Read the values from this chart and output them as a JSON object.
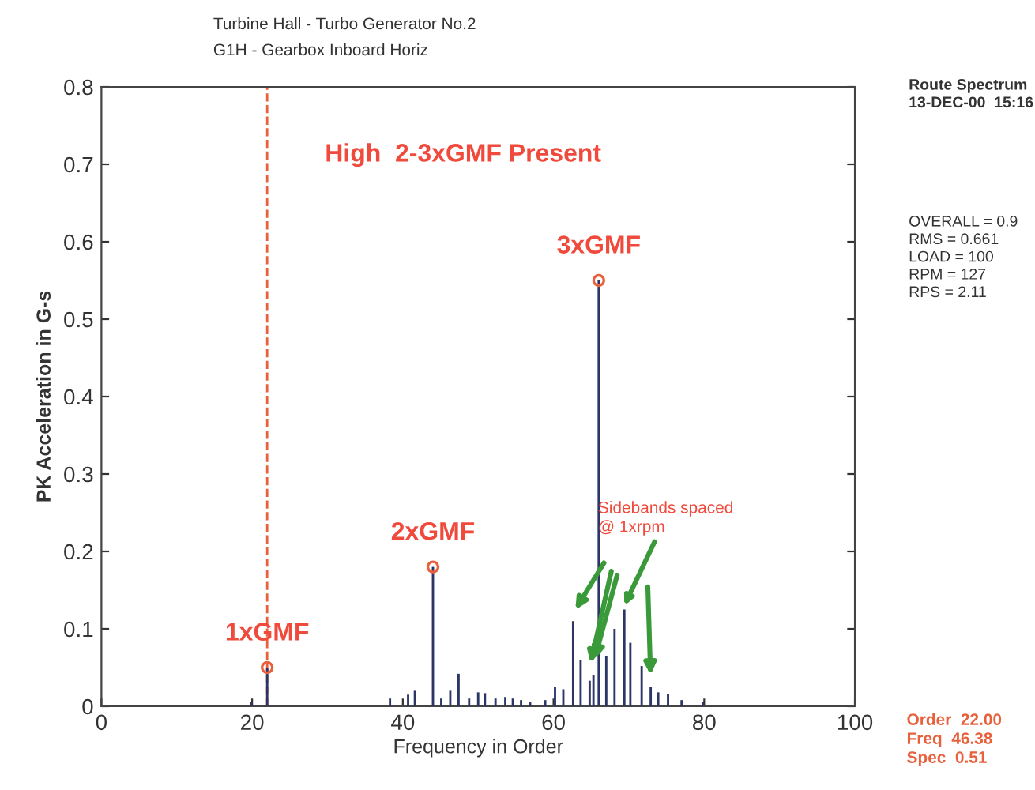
{
  "chart_data": {
    "type": "bar",
    "title": "Turbine Hall - Turbo Generator No.2",
    "subtitle": "G1H - Gearbox Inboard Horiz",
    "xlabel": "Frequency in Order",
    "ylabel": "PK Acceleration in G-s",
    "xlim": [
      0,
      100
    ],
    "xticks": [
      0,
      20,
      40,
      60,
      80,
      100
    ],
    "ylim": [
      0,
      0.8
    ],
    "yticks": [
      0,
      0.1,
      0.2,
      0.3,
      0.4,
      0.5,
      0.6,
      0.7,
      0.8
    ],
    "grid": false,
    "legend": false,
    "series": [
      {
        "color": "#2b3566",
        "x": [
          19.9,
          22.0,
          38.3,
          40.7,
          41.6,
          44.0,
          45.1,
          46.3,
          47.4,
          48.8,
          50.0,
          50.9,
          52.3,
          53.6,
          54.6,
          55.7,
          56.9,
          58.9,
          60.2,
          61.3,
          62.6,
          63.6,
          64.8,
          65.3,
          66.0,
          67.0,
          68.1,
          69.4,
          70.2,
          71.7,
          72.9,
          73.9,
          75.2,
          77.0,
          79.8
        ],
        "values": [
          0.006,
          0.05,
          0.01,
          0.015,
          0.02,
          0.18,
          0.01,
          0.02,
          0.042,
          0.01,
          0.018,
          0.017,
          0.01,
          0.012,
          0.01,
          0.008,
          0.005,
          0.008,
          0.025,
          0.022,
          0.11,
          0.06,
          0.033,
          0.04,
          0.55,
          0.065,
          0.1,
          0.125,
          0.082,
          0.052,
          0.025,
          0.018,
          0.016,
          0.008,
          0.006
        ]
      },
      {
        "type": "scatter",
        "color": "#e8603c",
        "marker": "circle",
        "x": [
          22.0,
          44.0,
          66.0
        ],
        "values": [
          0.05,
          0.18,
          0.55
        ]
      }
    ],
    "ref_lines": [
      {
        "axis": "x",
        "value": 22.0,
        "color": "#e8603c",
        "line_style": "dashed"
      }
    ],
    "annotations": [
      {
        "text": "1xGMF",
        "x": 22.0,
        "y": 0.05
      },
      {
        "text": "2xGMF",
        "x": 44.0,
        "y": 0.18
      },
      {
        "text": "3xGMF",
        "x": 66.0,
        "y": 0.55
      },
      "High  2-3xGMF Present",
      {
        "text": "Sidebands spaced\n@ 1xrpm",
        "x": 69.4,
        "y": 0.125
      },
      "Route Spectrum\n13-DEC-00  15:16",
      "OVERALL = 0.9\nRMS = 0.661\nLOAD = 100\nRPM = 127\nRPS = 2.11",
      "Order  22.00\nFreq  46.38\nSpec  0.51"
    ]
  }
}
